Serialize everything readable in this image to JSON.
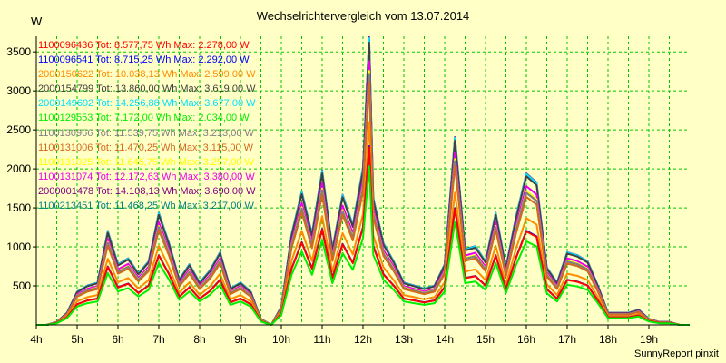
{
  "title": "Wechselrichtervergleich vom 13.07.2014",
  "unit": "W",
  "footer": "SunnyReport pinxit",
  "chart_data": {
    "type": "line",
    "title": "Wechselrichtervergleich vom 13.07.2014",
    "ylabel": "W",
    "xlabel": "",
    "xlim": [
      4,
      20
    ],
    "ylim": [
      0,
      3700
    ],
    "grid": true,
    "grid_color": "#00c800",
    "legend_position": "top-left",
    "x_tick_labels": [
      "4h",
      "5h",
      "6h",
      "7h",
      "8h",
      "9h",
      "10h",
      "11h",
      "12h",
      "13h",
      "14h",
      "15h",
      "16h",
      "17h",
      "18h",
      "19h"
    ],
    "y_tick_labels": [
      "500",
      "1000",
      "1500",
      "2000",
      "2500",
      "3000",
      "3500"
    ],
    "x": [
      4.0,
      4.25,
      4.5,
      4.75,
      5.0,
      5.25,
      5.5,
      5.75,
      6.0,
      6.25,
      6.5,
      6.75,
      7.0,
      7.25,
      7.5,
      7.75,
      8.0,
      8.25,
      8.5,
      8.75,
      9.0,
      9.25,
      9.5,
      9.75,
      10.0,
      10.25,
      10.5,
      10.75,
      11.0,
      11.25,
      11.5,
      11.75,
      12.0,
      12.15,
      12.25,
      12.5,
      12.75,
      13.0,
      13.25,
      13.5,
      13.75,
      14.0,
      14.25,
      14.5,
      14.75,
      15.0,
      15.25,
      15.5,
      15.75,
      16.0,
      16.25,
      16.5,
      16.75,
      17.0,
      17.25,
      17.5,
      17.75,
      18.0,
      18.25,
      18.5,
      18.75,
      19.0,
      19.25,
      19.5,
      19.75,
      20.0
    ],
    "base_profile": [
      0.0,
      0.0,
      0.01,
      0.04,
      0.11,
      0.13,
      0.14,
      0.31,
      0.2,
      0.22,
      0.17,
      0.21,
      0.37,
      0.27,
      0.15,
      0.2,
      0.14,
      0.18,
      0.24,
      0.12,
      0.14,
      0.11,
      0.02,
      0.0,
      0.06,
      0.3,
      0.44,
      0.3,
      0.51,
      0.25,
      0.43,
      0.33,
      0.52,
      0.95,
      0.42,
      0.27,
      0.21,
      0.14,
      0.13,
      0.12,
      0.13,
      0.2,
      0.62,
      0.25,
      0.26,
      0.21,
      0.37,
      0.19,
      0.36,
      0.5,
      0.47,
      0.19,
      0.14,
      0.24,
      0.23,
      0.21,
      0.13,
      0.04,
      0.04,
      0.04,
      0.05,
      0.02,
      0.01,
      0.01,
      0.0,
      0.0
    ],
    "series": [
      {
        "name": "1100096436 Tot: 8.577,75 Wh Max: 2.278,00 W",
        "color": "#ff0000",
        "max": 2278
      },
      {
        "name": "1100096541 Tot: 8.715,25 Wh Max: 2.292,00 W",
        "color": "#0000ff",
        "max": 2292
      },
      {
        "name": "2000150622 Tot: 10.038,13 Wh Max: 2.599,00 W",
        "color": "#ff8c00",
        "max": 2599
      },
      {
        "name": "2000154799 Tot: 13.860,00 Wh Max: 3.619,00 W",
        "color": "#404040",
        "max": 3619
      },
      {
        "name": "2000149692 Tot: 14.256,88 Wh Max: 3.677,00 W",
        "color": "#00e0ff",
        "max": 3677
      },
      {
        "name": "1100129553 Tot: 7.172,00 Wh Max: 2.034,00 W",
        "color": "#00ee00",
        "max": 2034
      },
      {
        "name": "1100130966 Tot: 11.539,75 Wh Max: 3.213,00 W",
        "color": "#808080",
        "max": 3213
      },
      {
        "name": "1100131006 Tot: 11.470,25 Wh Max: 3.115,00 W",
        "color": "#d2691e",
        "max": 3115
      },
      {
        "name": "1100131025 Tot: 11.645,75 Wh Max: 3.257,00 W",
        "color": "#ffff00",
        "max": 3257
      },
      {
        "name": "1100131074 Tot: 12.172,63 Wh Max: 3.380,00 W",
        "color": "#ee00ee",
        "max": 3380
      },
      {
        "name": "2000001478 Tot: 14.108,13 Wh Max: 3.690,00 W",
        "color": "#800080",
        "max": 3690
      },
      {
        "name": "1100213451 Tot: 11.468,25 Wh Max: 3.217,00 W",
        "color": "#008080",
        "max": 3217
      }
    ]
  }
}
